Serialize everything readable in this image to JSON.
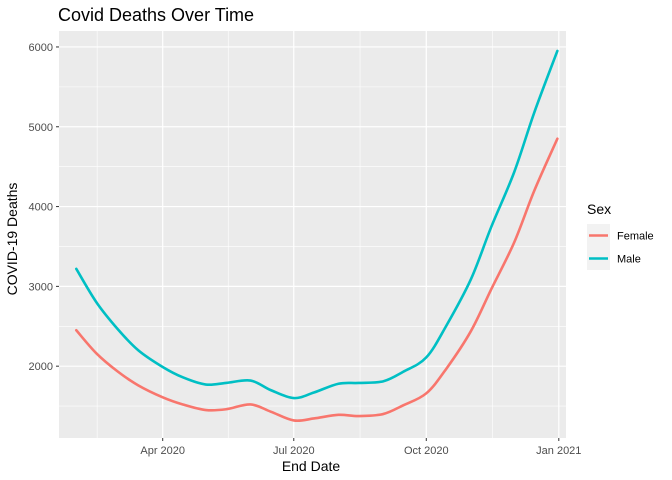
{
  "chart_data": {
    "type": "line",
    "title": "Covid Deaths Over Time",
    "xlabel": "End Date",
    "ylabel": "COVID-19 Deaths",
    "x_ticks": [
      "2020-04-01",
      "2020-07-01",
      "2020-10-01",
      "2021-01-01"
    ],
    "x_tick_labels": [
      "Apr 2020",
      "Jul 2020",
      "Oct 2020",
      "Jan 2021"
    ],
    "xlim": [
      "2020-01-20",
      "2021-01-06"
    ],
    "y_ticks": [
      2000,
      3000,
      4000,
      5000,
      6000
    ],
    "y_tick_labels": [
      "2000",
      "3000",
      "4000",
      "5000",
      "6000"
    ],
    "ylim": [
      1100,
      6200
    ],
    "grid": true,
    "legend": {
      "title": "Sex",
      "placement": "right"
    },
    "series": [
      {
        "name": "Female",
        "color": "#F8766D",
        "x": [
          "2020-02-01",
          "2020-02-15",
          "2020-03-01",
          "2020-03-15",
          "2020-04-01",
          "2020-04-15",
          "2020-05-01",
          "2020-05-15",
          "2020-06-01",
          "2020-06-15",
          "2020-07-01",
          "2020-07-15",
          "2020-08-01",
          "2020-08-15",
          "2020-09-01",
          "2020-09-15",
          "2020-10-01",
          "2020-10-15",
          "2020-11-01",
          "2020-11-15",
          "2020-12-01",
          "2020-12-15",
          "2020-12-31"
        ],
        "values": [
          2450,
          2160,
          1930,
          1760,
          1610,
          1520,
          1450,
          1460,
          1520,
          1430,
          1320,
          1345,
          1390,
          1375,
          1400,
          1510,
          1660,
          1970,
          2440,
          2960,
          3550,
          4200,
          4850
        ]
      },
      {
        "name": "Male",
        "color": "#00BFC4",
        "x": [
          "2020-02-01",
          "2020-02-15",
          "2020-03-01",
          "2020-03-15",
          "2020-04-01",
          "2020-04-15",
          "2020-05-01",
          "2020-05-15",
          "2020-06-01",
          "2020-06-15",
          "2020-07-01",
          "2020-07-15",
          "2020-08-01",
          "2020-08-15",
          "2020-09-01",
          "2020-09-15",
          "2020-10-01",
          "2020-10-15",
          "2020-11-01",
          "2020-11-15",
          "2020-12-01",
          "2020-12-15",
          "2020-12-31"
        ],
        "values": [
          3220,
          2800,
          2460,
          2200,
          1990,
          1860,
          1770,
          1790,
          1820,
          1700,
          1600,
          1670,
          1780,
          1790,
          1810,
          1930,
          2110,
          2510,
          3090,
          3740,
          4430,
          5180,
          5950
        ]
      }
    ]
  }
}
